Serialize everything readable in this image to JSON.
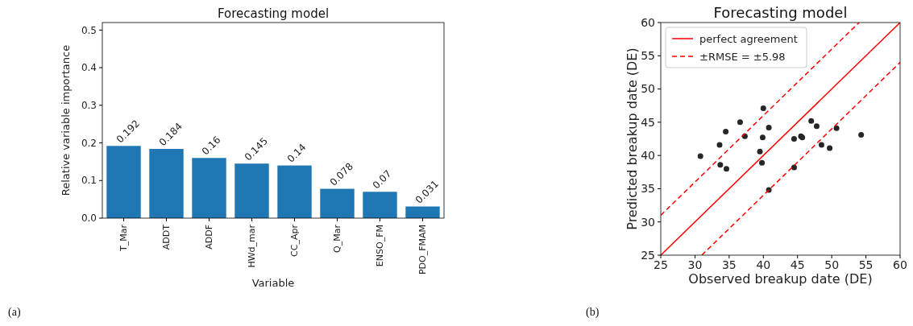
{
  "chart_data": [
    {
      "type": "bar",
      "title": "Forecasting model",
      "xlabel": "Variable",
      "ylabel": "Relative variable importance",
      "categories": [
        "T_Mar",
        "ADDT",
        "ADDF",
        "HWd_mar",
        "CC_Apr",
        "Q_Mar",
        "ENSO_FM",
        "PDO_FMAM"
      ],
      "values": [
        0.192,
        0.184,
        0.16,
        0.145,
        0.14,
        0.078,
        0.07,
        0.031
      ],
      "color": "#1f77b4",
      "data_labels": true,
      "ylim": [
        0,
        0.52
      ],
      "yticks": [
        {
          "value": 0,
          "label": "0.0"
        },
        0.1,
        0.2,
        0.3,
        0.4,
        0.5
      ],
      "grid": false,
      "annotations": [
        "(a)"
      ]
    },
    {
      "type": "scatter",
      "title": "Forecasting model",
      "xlabel": "Observed breakup date (DE)",
      "ylabel": "Predicted breakup date (DE)",
      "xlim": [
        25,
        60
      ],
      "ylim": [
        25,
        60
      ],
      "xticks": [
        25,
        30,
        35,
        40,
        45,
        50,
        55,
        60
      ],
      "yticks": [
        25,
        30,
        35,
        40,
        45,
        50,
        55,
        60
      ],
      "grid": false,
      "legend": "top left",
      "annotations": [
        "(b)"
      ],
      "series": [
        {
          "type": "scatter",
          "marker": "circle",
          "color": "#262626",
          "x": [
            30.8,
            33.6,
            33.7,
            34.5,
            34.6,
            36.6,
            37.3,
            39.5,
            39.8,
            39.9,
            40.0,
            40.8,
            40.8,
            44.5,
            44.5,
            45.5,
            45.7,
            47.0,
            47.8,
            48.5,
            49.7,
            50.7,
            54.3
          ],
          "values": [
            39.9,
            41.6,
            38.6,
            43.6,
            38.0,
            45.0,
            42.9,
            40.6,
            38.9,
            42.7,
            47.1,
            44.2,
            34.8,
            42.5,
            38.2,
            42.9,
            42.7,
            45.2,
            44.4,
            41.6,
            41.1,
            44.1,
            43.1
          ]
        },
        {
          "type": "line",
          "name": "perfect agreement",
          "color": "#ff0000",
          "line_style": "solid",
          "x": [
            25,
            60
          ],
          "values": [
            25,
            60
          ]
        },
        {
          "type": "line",
          "name": "±RMSE = ±5.98",
          "color": "#ff0000",
          "line_style": "dashed",
          "x": [
            25,
            54
          ],
          "values": [
            31,
            60
          ]
        },
        {
          "type": "line",
          "color": "#ff0000",
          "line_style": "dashed",
          "x": [
            31,
            60
          ],
          "values": [
            25,
            54
          ]
        }
      ]
    }
  ]
}
